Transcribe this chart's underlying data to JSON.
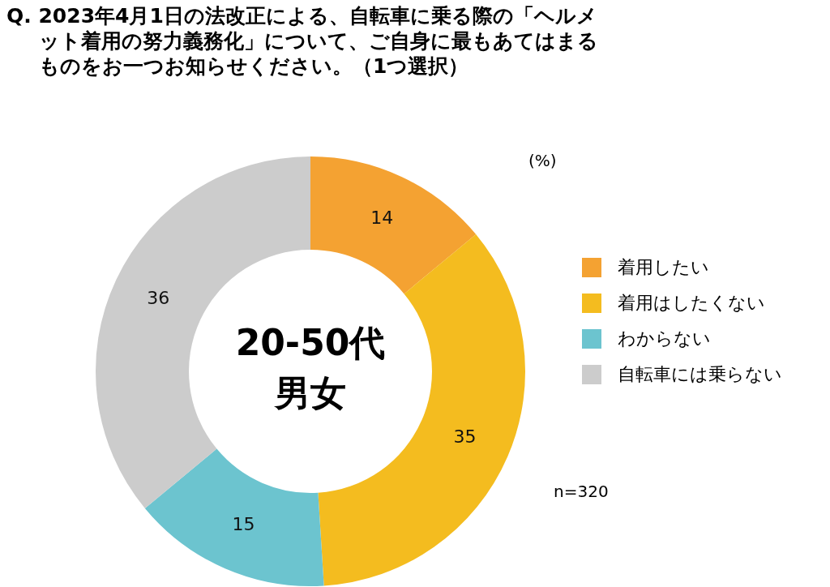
{
  "chart_data": {
    "type": "donut",
    "title": "Q. 2023年4月1日の法改正による、自転車に乗る際の「ヘルメット着用の努力義務化」について、ご自身に最もあてはまるものをお一つお知らせください。（1つ選択）",
    "categories": [
      "着用したい",
      "着用はしたくない",
      "わからない",
      "自転車には乗らない"
    ],
    "values": [
      14,
      35,
      15,
      36
    ],
    "colors": [
      "#f4a232",
      "#f4bc1f",
      "#6cc4cf",
      "#cccccc"
    ],
    "data_labels": true,
    "legend": "right",
    "annotations": [
      "20-50代",
      "男女",
      "(%)",
      "n=320"
    ]
  }
}
